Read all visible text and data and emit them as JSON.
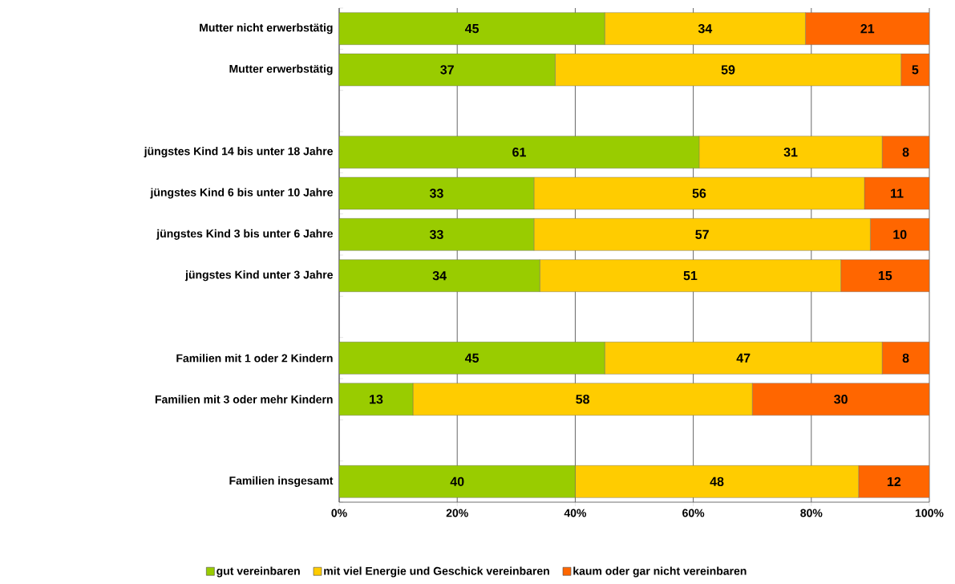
{
  "chart_data": {
    "type": "bar",
    "orientation": "horizontal",
    "stacked": true,
    "categories": [
      "Mutter nicht erwerbstätig",
      "Mutter erwerbstätig",
      null,
      "jüngstes Kind 14 bis unter 18 Jahre",
      "jüngstes Kind 6 bis unter 10 Jahre",
      "jüngstes Kind 3 bis unter 6 Jahre",
      "jüngstes Kind unter 3 Jahre",
      null,
      "Familien mit 1 oder 2 Kindern",
      "Familien mit 3 oder mehr Kindern",
      null,
      "Familien insgesamt"
    ],
    "series": [
      {
        "name": "gut vereinbaren",
        "color": "#99cc00",
        "values": [
          45,
          36.6,
          null,
          61,
          33,
          33,
          34,
          null,
          45,
          12.5,
          null,
          40
        ],
        "value_labels": [
          "45",
          "37",
          null,
          "61",
          "33",
          "33",
          "34",
          null,
          "45",
          "13",
          null,
          "40"
        ]
      },
      {
        "name": "mit viel Energie und Geschick vereinbaren",
        "color": "#ffcc00",
        "values": [
          34,
          58.6,
          null,
          31,
          56,
          57,
          51,
          null,
          47,
          57.5,
          null,
          48
        ],
        "value_labels": [
          "34",
          "59",
          null,
          "31",
          "56",
          "57",
          "51",
          null,
          "47",
          "58",
          null,
          "48"
        ]
      },
      {
        "name": "kaum oder gar nicht vereinbaren",
        "color": "#ff6600",
        "values": [
          21,
          4.8,
          null,
          8,
          11,
          10,
          15,
          null,
          8,
          30,
          null,
          12
        ],
        "value_labels": [
          "21",
          "5",
          null,
          "8",
          "11",
          "10",
          "15",
          null,
          "8",
          "30",
          null,
          "12"
        ]
      }
    ],
    "xlim": [
      0,
      100
    ],
    "xticks": [
      {
        "value": 0,
        "label": "0%"
      },
      {
        "value": 20,
        "label": "20%"
      },
      {
        "value": 40,
        "label": "40%"
      },
      {
        "value": 60,
        "label": "60%"
      },
      {
        "value": 80,
        "label": "80%"
      },
      {
        "value": 100,
        "label": "100%"
      }
    ],
    "grid": "x",
    "legend": "bottom"
  }
}
